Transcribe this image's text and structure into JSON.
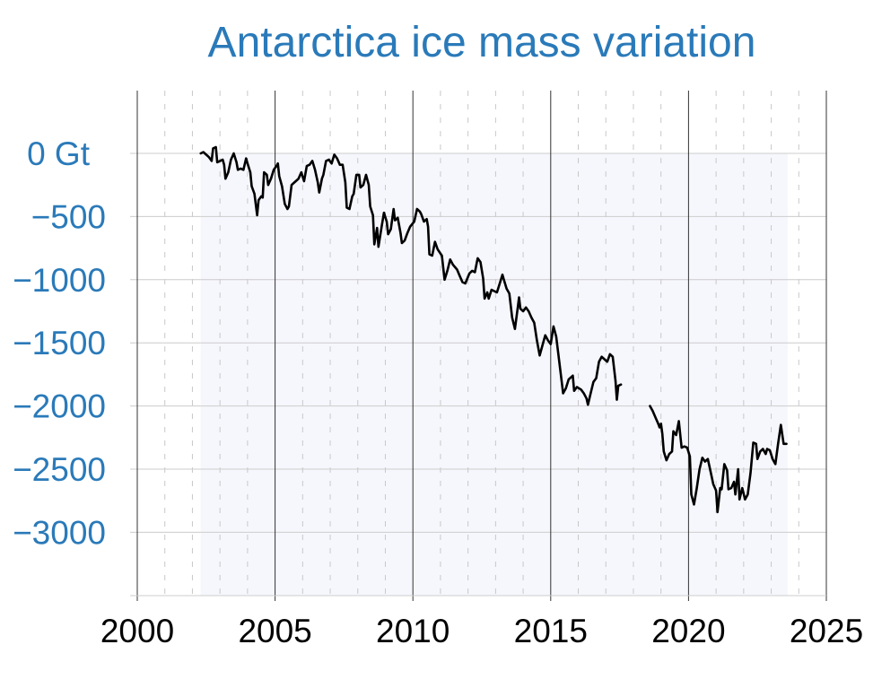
{
  "chart_data": {
    "type": "line",
    "title": "Antarctica ice mass variation",
    "xlabel": "",
    "ylabel": "",
    "xlim": [
      2000,
      2025
    ],
    "ylim": [
      -3500,
      500
    ],
    "x_ticks": [
      "2000",
      "2005",
      "2010",
      "2015",
      "2020",
      "2025"
    ],
    "y_ticks": [
      {
        "value": 0,
        "label": "0 Gt"
      },
      {
        "value": -500,
        "label": "−500"
      },
      {
        "value": -1000,
        "label": "−1000"
      },
      {
        "value": -1500,
        "label": "−1500"
      },
      {
        "value": -2000,
        "label": "−2000"
      },
      {
        "value": -2500,
        "label": "−2500"
      },
      {
        "value": -3000,
        "label": "−3000"
      }
    ],
    "grid": true,
    "colors": {
      "title": "#2a7ab9",
      "y_ticks": "#2a7ab9",
      "line": "#000000",
      "fill": "#f6f7fd",
      "grid": "#cccccc"
    },
    "series": [
      {
        "segments": [
          [
            [
              2002.3,
              0
            ],
            [
              2002.4,
              10
            ],
            [
              2002.5,
              -10
            ],
            [
              2002.6,
              -30
            ],
            [
              2002.7,
              -60
            ],
            [
              2002.75,
              40
            ],
            [
              2002.85,
              50
            ],
            [
              2002.9,
              -70
            ],
            [
              2003.0,
              -60
            ],
            [
              2003.1,
              -50
            ],
            [
              2003.15,
              -90
            ],
            [
              2003.2,
              -200
            ],
            [
              2003.3,
              -150
            ],
            [
              2003.4,
              -50
            ],
            [
              2003.5,
              0
            ],
            [
              2003.6,
              -70
            ],
            [
              2003.65,
              -130
            ],
            [
              2003.75,
              -120
            ],
            [
              2003.85,
              -130
            ],
            [
              2003.95,
              -40
            ],
            [
              2004.0,
              -80
            ],
            [
              2004.1,
              -150
            ],
            [
              2004.15,
              -260
            ],
            [
              2004.25,
              -320
            ],
            [
              2004.35,
              -490
            ],
            [
              2004.4,
              -370
            ],
            [
              2004.5,
              -340
            ],
            [
              2004.55,
              -350
            ],
            [
              2004.6,
              -150
            ],
            [
              2004.7,
              -170
            ],
            [
              2004.75,
              -250
            ],
            [
              2004.85,
              -200
            ],
            [
              2004.95,
              -130
            ],
            [
              2005.05,
              -100
            ],
            [
              2005.1,
              -80
            ],
            [
              2005.15,
              -180
            ],
            [
              2005.25,
              -260
            ],
            [
              2005.35,
              -400
            ],
            [
              2005.45,
              -440
            ],
            [
              2005.5,
              -420
            ],
            [
              2005.6,
              -250
            ],
            [
              2005.7,
              -230
            ],
            [
              2005.8,
              -210
            ],
            [
              2005.85,
              -200
            ],
            [
              2005.95,
              -150
            ],
            [
              2006.05,
              -220
            ],
            [
              2006.15,
              -100
            ],
            [
              2006.25,
              -90
            ],
            [
              2006.35,
              -60
            ],
            [
              2006.45,
              -130
            ],
            [
              2006.55,
              -230
            ],
            [
              2006.6,
              -310
            ],
            [
              2006.7,
              -200
            ],
            [
              2006.75,
              -170
            ],
            [
              2006.85,
              -60
            ],
            [
              2006.95,
              -50
            ],
            [
              2007.05,
              -80
            ],
            [
              2007.15,
              -10
            ],
            [
              2007.25,
              -40
            ],
            [
              2007.35,
              -90
            ],
            [
              2007.45,
              -90
            ],
            [
              2007.55,
              -230
            ],
            [
              2007.6,
              -430
            ],
            [
              2007.7,
              -440
            ],
            [
              2007.8,
              -340
            ],
            [
              2007.85,
              -320
            ],
            [
              2007.95,
              -170
            ],
            [
              2008.05,
              -170
            ],
            [
              2008.1,
              -270
            ],
            [
              2008.2,
              -250
            ],
            [
              2008.3,
              -170
            ],
            [
              2008.4,
              -250
            ],
            [
              2008.45,
              -420
            ],
            [
              2008.55,
              -490
            ],
            [
              2008.6,
              -720
            ],
            [
              2008.7,
              -590
            ],
            [
              2008.75,
              -740
            ],
            [
              2008.85,
              -600
            ],
            [
              2008.95,
              -470
            ],
            [
              2009.05,
              -540
            ],
            [
              2009.1,
              -640
            ],
            [
              2009.2,
              -600
            ],
            [
              2009.3,
              -440
            ],
            [
              2009.35,
              -530
            ],
            [
              2009.45,
              -510
            ],
            [
              2009.55,
              -630
            ],
            [
              2009.6,
              -710
            ],
            [
              2009.7,
              -690
            ],
            [
              2009.8,
              -630
            ],
            [
              2009.9,
              -580
            ],
            [
              2010.05,
              -540
            ],
            [
              2010.15,
              -440
            ],
            [
              2010.25,
              -460
            ],
            [
              2010.3,
              -480
            ],
            [
              2010.4,
              -540
            ],
            [
              2010.5,
              -520
            ],
            [
              2010.55,
              -580
            ],
            [
              2010.6,
              -800
            ],
            [
              2010.7,
              -810
            ],
            [
              2010.8,
              -700
            ],
            [
              2010.9,
              -760
            ],
            [
              2011.05,
              -810
            ],
            [
              2011.15,
              -1000
            ],
            [
              2011.25,
              -930
            ],
            [
              2011.35,
              -840
            ],
            [
              2011.45,
              -880
            ],
            [
              2011.6,
              -920
            ],
            [
              2011.7,
              -970
            ],
            [
              2011.8,
              -1020
            ],
            [
              2011.9,
              -1030
            ],
            [
              2012.05,
              -950
            ],
            [
              2012.15,
              -930
            ],
            [
              2012.25,
              -940
            ],
            [
              2012.35,
              -830
            ],
            [
              2012.45,
              -860
            ],
            [
              2012.55,
              -990
            ],
            [
              2012.6,
              -1150
            ],
            [
              2012.7,
              -1100
            ],
            [
              2012.75,
              -1150
            ],
            [
              2012.85,
              -1080
            ],
            [
              2012.95,
              -1090
            ],
            [
              2013.05,
              -1100
            ],
            [
              2013.15,
              -1030
            ],
            [
              2013.25,
              -960
            ],
            [
              2013.3,
              -1000
            ],
            [
              2013.4,
              -1070
            ],
            [
              2013.5,
              -1110
            ],
            [
              2013.6,
              -1300
            ],
            [
              2013.7,
              -1390
            ],
            [
              2013.8,
              -1230
            ],
            [
              2013.85,
              -1140
            ],
            [
              2013.9,
              -1230
            ],
            [
              2014.0,
              -1250
            ],
            [
              2014.1,
              -1220
            ],
            [
              2014.2,
              -1250
            ],
            [
              2014.3,
              -1300
            ],
            [
              2014.4,
              -1340
            ],
            [
              2014.5,
              -1480
            ],
            [
              2014.6,
              -1600
            ],
            [
              2014.7,
              -1520
            ],
            [
              2014.8,
              -1440
            ],
            [
              2014.9,
              -1480
            ],
            [
              2015.0,
              -1510
            ],
            [
              2015.1,
              -1370
            ],
            [
              2015.2,
              -1450
            ],
            [
              2015.3,
              -1630
            ],
            [
              2015.4,
              -1810
            ],
            [
              2015.45,
              -1900
            ],
            [
              2015.55,
              -1860
            ],
            [
              2015.65,
              -1790
            ],
            [
              2015.8,
              -1760
            ],
            [
              2015.85,
              -1880
            ],
            [
              2015.95,
              -1850
            ],
            [
              2016.1,
              -1870
            ],
            [
              2016.2,
              -1900
            ],
            [
              2016.3,
              -1940
            ],
            [
              2016.35,
              -1990
            ],
            [
              2016.45,
              -1900
            ],
            [
              2016.55,
              -1810
            ],
            [
              2016.65,
              -1780
            ],
            [
              2016.75,
              -1650
            ],
            [
              2016.85,
              -1610
            ],
            [
              2016.95,
              -1630
            ],
            [
              2017.05,
              -1650
            ],
            [
              2017.15,
              -1590
            ],
            [
              2017.25,
              -1610
            ],
            [
              2017.35,
              -1800
            ],
            [
              2017.4,
              -1950
            ],
            [
              2017.45,
              -1840
            ],
            [
              2017.55,
              -1830
            ]
          ],
          [
            [
              2018.6,
              -2000
            ],
            [
              2018.7,
              -2040
            ],
            [
              2018.8,
              -2090
            ],
            [
              2018.9,
              -2140
            ],
            [
              2018.95,
              -2170
            ],
            [
              2019.0,
              -2140
            ],
            [
              2019.05,
              -2220
            ],
            [
              2019.1,
              -2360
            ],
            [
              2019.2,
              -2430
            ],
            [
              2019.3,
              -2380
            ],
            [
              2019.4,
              -2360
            ],
            [
              2019.45,
              -2200
            ],
            [
              2019.55,
              -2230
            ],
            [
              2019.65,
              -2120
            ],
            [
              2019.75,
              -2330
            ],
            [
              2019.85,
              -2320
            ],
            [
              2019.95,
              -2330
            ],
            [
              2020.05,
              -2400
            ],
            [
              2020.1,
              -2700
            ],
            [
              2020.2,
              -2780
            ],
            [
              2020.3,
              -2650
            ],
            [
              2020.4,
              -2500
            ],
            [
              2020.5,
              -2410
            ],
            [
              2020.6,
              -2440
            ],
            [
              2020.7,
              -2420
            ],
            [
              2020.8,
              -2520
            ],
            [
              2020.9,
              -2620
            ],
            [
              2021.0,
              -2670
            ],
            [
              2021.05,
              -2840
            ],
            [
              2021.15,
              -2650
            ],
            [
              2021.2,
              -2660
            ],
            [
              2021.3,
              -2460
            ],
            [
              2021.4,
              -2510
            ],
            [
              2021.45,
              -2660
            ],
            [
              2021.55,
              -2650
            ],
            [
              2021.65,
              -2600
            ],
            [
              2021.7,
              -2700
            ],
            [
              2021.8,
              -2500
            ],
            [
              2021.85,
              -2740
            ],
            [
              2021.95,
              -2650
            ],
            [
              2022.05,
              -2740
            ],
            [
              2022.15,
              -2700
            ],
            [
              2022.25,
              -2530
            ],
            [
              2022.35,
              -2290
            ],
            [
              2022.45,
              -2300
            ],
            [
              2022.5,
              -2420
            ],
            [
              2022.6,
              -2360
            ],
            [
              2022.7,
              -2340
            ],
            [
              2022.8,
              -2380
            ],
            [
              2022.85,
              -2340
            ],
            [
              2022.95,
              -2350
            ],
            [
              2023.05,
              -2420
            ],
            [
              2023.15,
              -2460
            ],
            [
              2023.25,
              -2300
            ],
            [
              2023.35,
              -2150
            ],
            [
              2023.45,
              -2300
            ],
            [
              2023.55,
              -2300
            ]
          ]
        ]
      }
    ]
  }
}
